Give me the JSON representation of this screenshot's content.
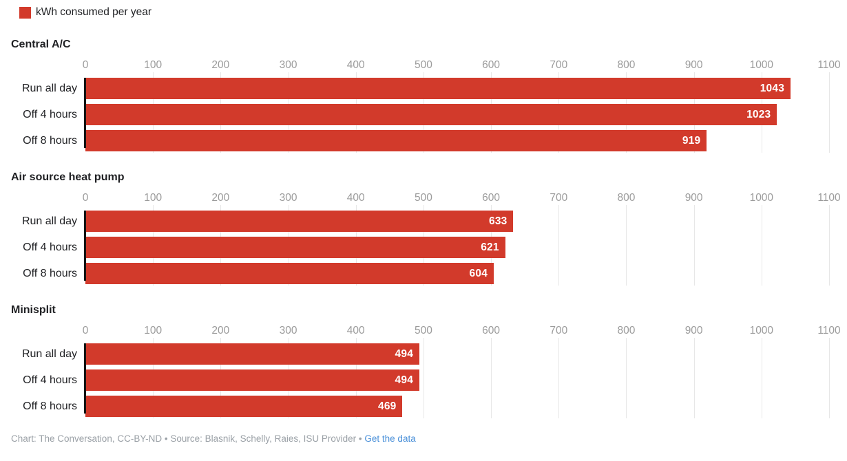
{
  "legend": {
    "label": "kWh consumed per year",
    "swatch_color": "#d23a2b"
  },
  "colors": {
    "bar": "#d23a2b",
    "axis_line": "#141414",
    "gridline": "#e7e7e7",
    "tick_text": "#9b9b9b",
    "label_text": "#202124",
    "value_text": "#ffffff",
    "caption_text": "#9aa0a6",
    "caption_link": "#4a90d9"
  },
  "chart_data": [
    {
      "type": "bar",
      "orientation": "horizontal",
      "title": "Central A/C",
      "series_name": "kWh consumed per year",
      "categories": [
        "Run all day",
        "Off 4 hours",
        "Off 8 hours"
      ],
      "values": [
        1043,
        1023,
        919
      ],
      "xlim": [
        0,
        1100
      ],
      "ticks": [
        0,
        100,
        200,
        300,
        400,
        500,
        600,
        700,
        800,
        900,
        1000,
        1100
      ],
      "grid": true,
      "value_labels": "inside-end"
    },
    {
      "type": "bar",
      "orientation": "horizontal",
      "title": "Air source heat pump",
      "series_name": "kWh consumed per year",
      "categories": [
        "Run all day",
        "Off 4 hours",
        "Off 8 hours"
      ],
      "values": [
        633,
        621,
        604
      ],
      "xlim": [
        0,
        1100
      ],
      "ticks": [
        0,
        100,
        200,
        300,
        400,
        500,
        600,
        700,
        800,
        900,
        1000,
        1100
      ],
      "grid": true,
      "value_labels": "inside-end"
    },
    {
      "type": "bar",
      "orientation": "horizontal",
      "title": "Minisplit",
      "series_name": "kWh consumed per year",
      "categories": [
        "Run all day",
        "Off 4 hours",
        "Off 8 hours"
      ],
      "values": [
        494,
        494,
        469
      ],
      "xlim": [
        0,
        1100
      ],
      "ticks": [
        0,
        100,
        200,
        300,
        400,
        500,
        600,
        700,
        800,
        900,
        1000,
        1100
      ],
      "grid": true,
      "value_labels": "inside-end"
    }
  ],
  "caption": {
    "prefix": "Chart: The Conversation, CC-BY-ND • Source: Blasnik, Schelly, Raies, ISU Provider • ",
    "link_label": "Get the data"
  }
}
